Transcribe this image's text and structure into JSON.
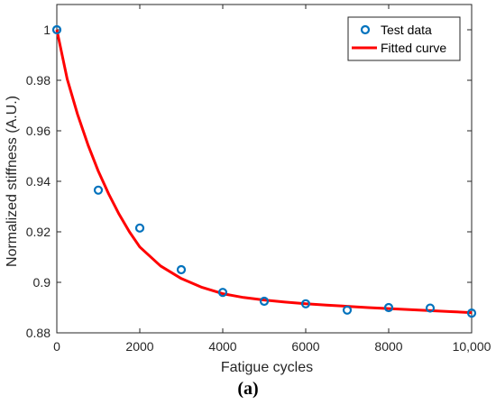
{
  "chart_data": {
    "type": "scatter",
    "xlabel": "Fatigue cycles",
    "ylabel": "Normalized stiffness (A.U.)",
    "xlim": [
      0,
      10000
    ],
    "ylim": [
      0.88,
      1.01
    ],
    "x_ticks": [
      0,
      2000,
      4000,
      6000,
      8000,
      10000
    ],
    "x_tick_labels": [
      "0",
      "2000",
      "4000",
      "6000",
      "8000",
      "10,000"
    ],
    "y_ticks": [
      0.88,
      0.9,
      0.92,
      0.94,
      0.96,
      0.98,
      1.0
    ],
    "y_tick_labels": [
      "0.88",
      "0.9",
      "0.92",
      "0.94",
      "0.96",
      "0.98",
      "1"
    ],
    "grid": false,
    "legend_position": "top-right",
    "series": [
      {
        "name": "Test data",
        "kind": "scatter",
        "marker": "circle-open",
        "color": "#0072BD",
        "x": [
          0,
          1000,
          2000,
          3000,
          4000,
          5000,
          6000,
          7000,
          8000,
          9000,
          10000
        ],
        "y": [
          1.0,
          0.9365,
          0.9215,
          0.905,
          0.896,
          0.8925,
          0.8915,
          0.889,
          0.89,
          0.8898,
          0.8878
        ]
      },
      {
        "name": "Fitted curve",
        "kind": "line",
        "color": "#FF0000",
        "x": [
          0,
          250,
          500,
          750,
          1000,
          1250,
          1500,
          1750,
          2000,
          2500,
          3000,
          3500,
          4000,
          4500,
          5000,
          5500,
          6000,
          6500,
          7000,
          7500,
          8000,
          8500,
          9000,
          9500,
          10000
        ],
        "y": [
          1.0,
          0.9805,
          0.9665,
          0.9545,
          0.944,
          0.935,
          0.927,
          0.92,
          0.914,
          0.9065,
          0.9015,
          0.898,
          0.8955,
          0.894,
          0.893,
          0.8922,
          0.8915,
          0.891,
          0.8905,
          0.89,
          0.8896,
          0.8892,
          0.8888,
          0.8884,
          0.888
        ]
      }
    ]
  },
  "caption": "(a)"
}
